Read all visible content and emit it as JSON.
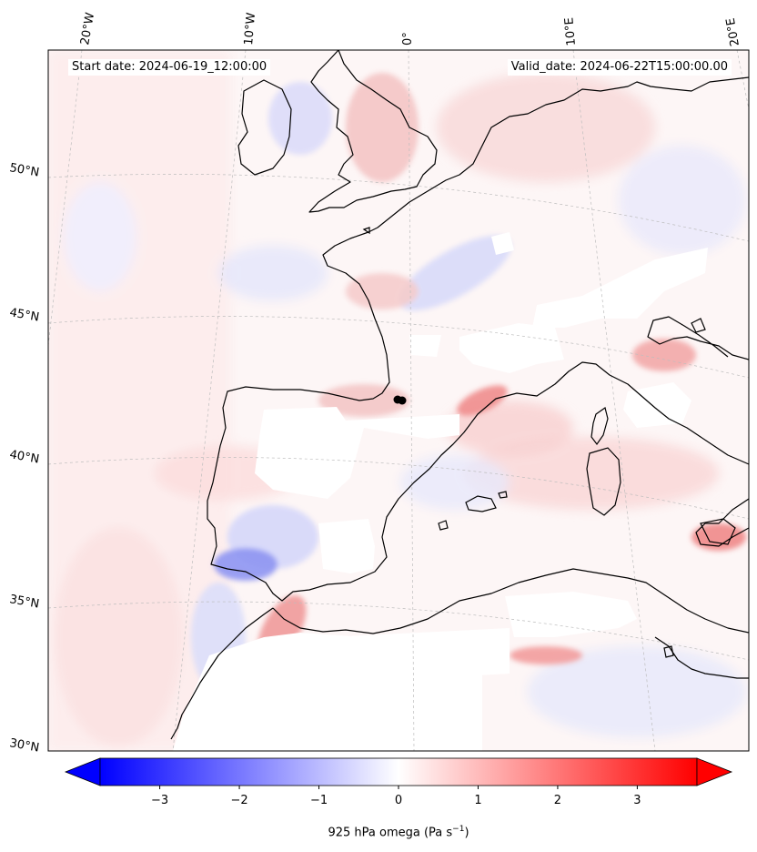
{
  "header": {
    "start_date": "Start date: 2024-06-19_12:00:00",
    "valid_date": "Valid_date: 2024-06-22T15:00:00.00"
  },
  "map": {
    "projection": "lambert-conformal",
    "field": "925 hPa omega",
    "longitude_labels": [
      "20°W",
      "10°W",
      "0°",
      "10°E",
      "20°E"
    ],
    "latitude_labels": [
      "50°N",
      "45°N",
      "40°N",
      "35°N",
      "30°N"
    ],
    "coastline_color": "#000000",
    "gridline_color": "#bbbbbb",
    "masked_regions": "white (terrain above 925 hPa)",
    "marker": "black dot near 2°E, 42°N"
  },
  "colorbar": {
    "colormap": "bwr",
    "min_color": "#0000ff",
    "mid_color": "#ffffff",
    "max_color": "#ff0000",
    "range": [
      -3.75,
      3.75
    ],
    "extend": "both",
    "ticks": [
      "−3",
      "−2",
      "−1",
      "0",
      "1",
      "2",
      "3"
    ],
    "label_main": "925 hPa omega (Pa s",
    "label_sup": "−1",
    "label_close": ")"
  }
}
